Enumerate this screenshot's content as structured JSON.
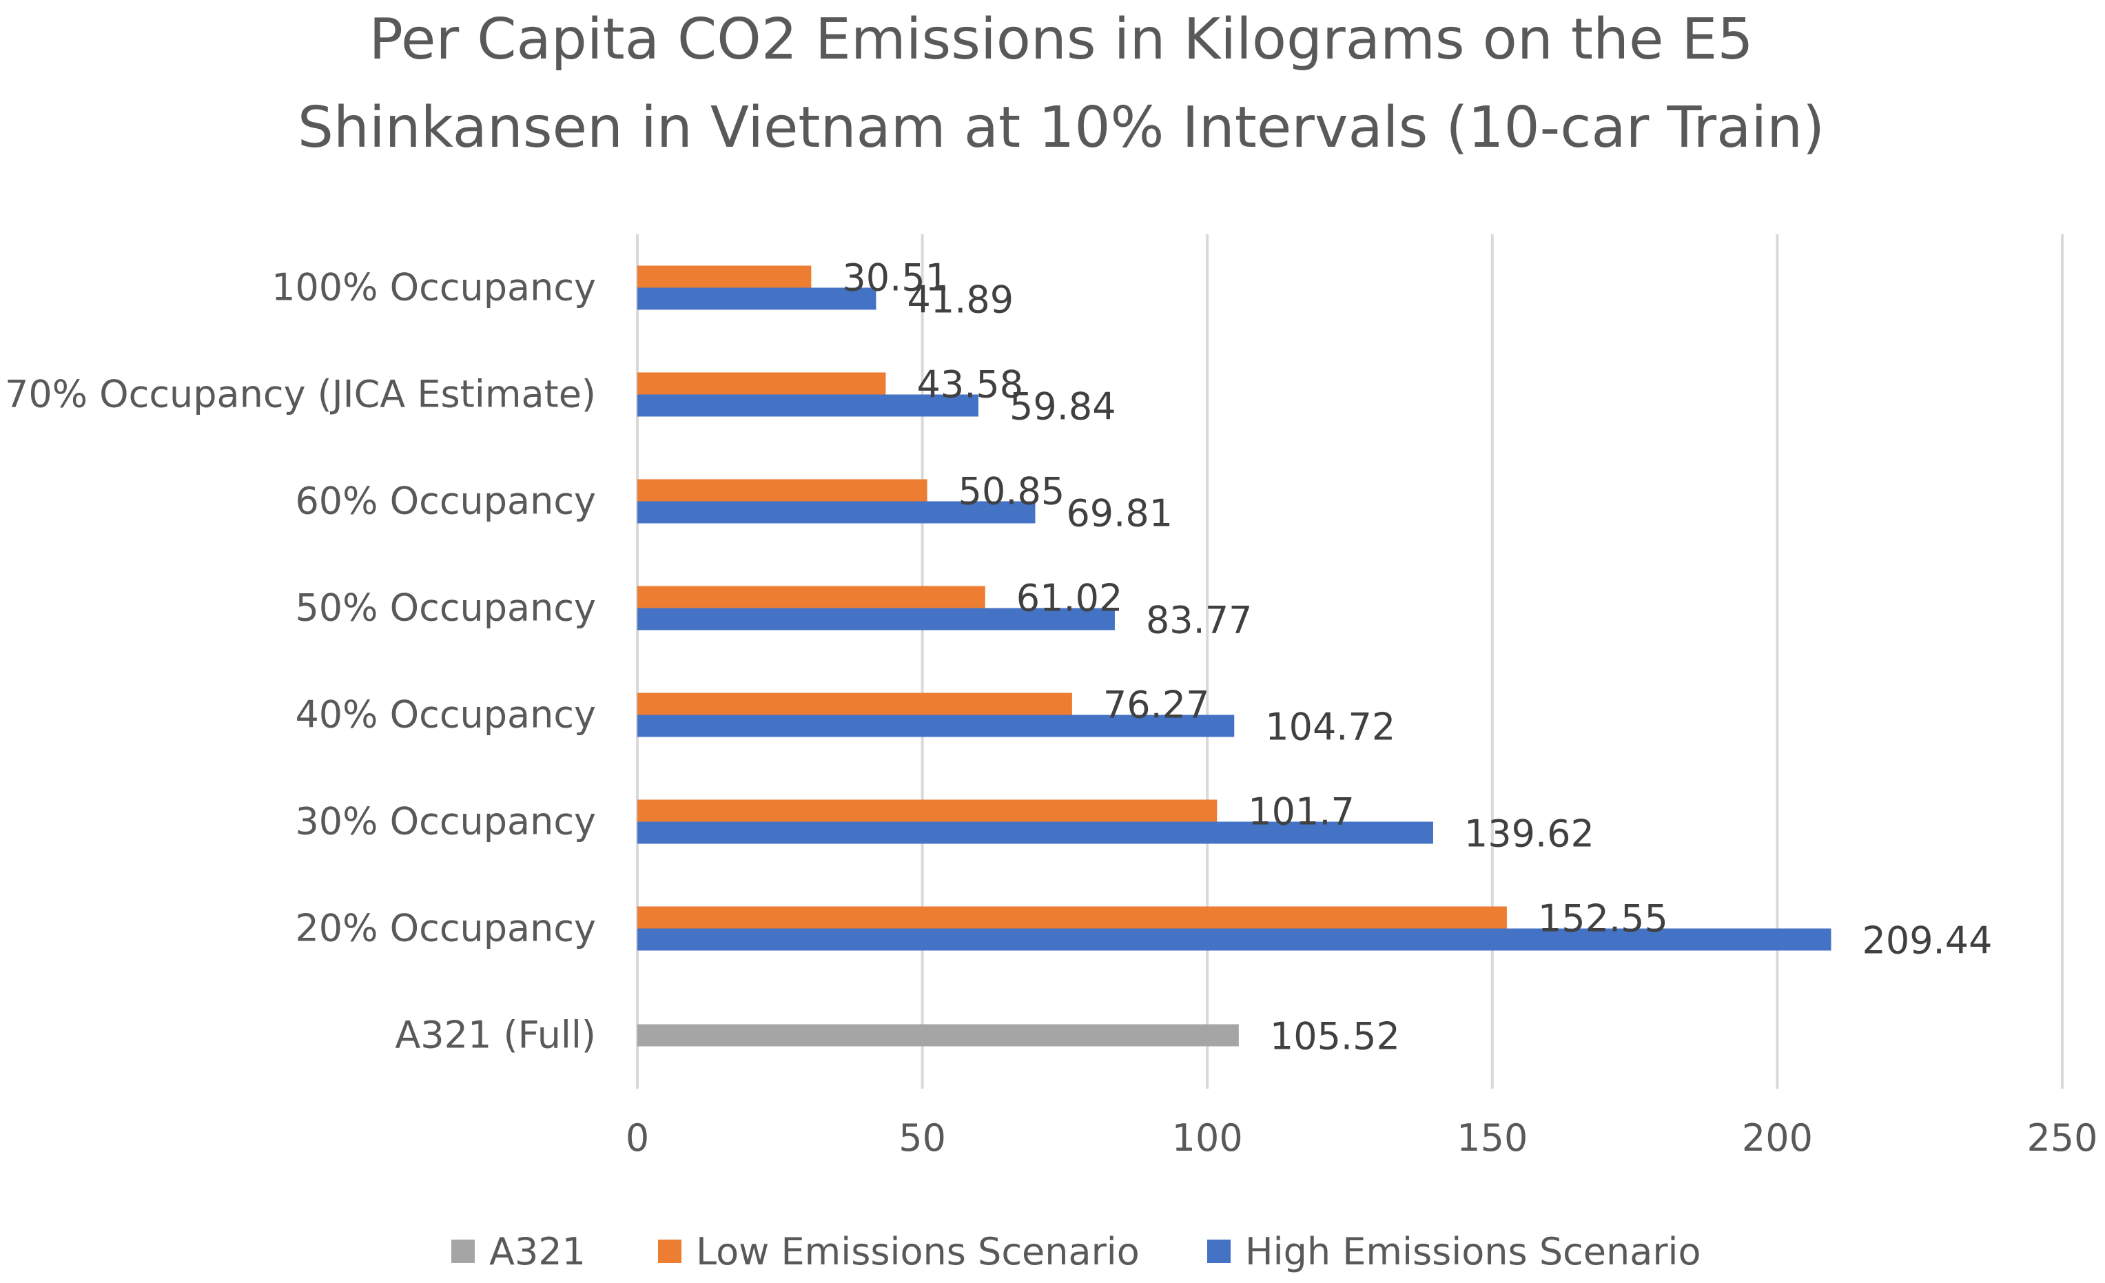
{
  "chart_data": {
    "type": "bar",
    "orientation": "horizontal",
    "title_lines": [
      "Per Capita CO2 Emissions in Kilograms on the E5",
      "Shinkansen in Vietnam at 10% Intervals (10-car Train)"
    ],
    "categories": [
      "100% Occupancy",
      "70% Occupancy (JICA Estimate)",
      "60% Occupancy",
      "50% Occupancy",
      "40% Occupancy",
      "30% Occupancy",
      "20% Occupancy",
      "A321 (Full)"
    ],
    "series": [
      {
        "name": "High Emissions Scenario",
        "color": "#4472C4",
        "values": [
          41.89,
          59.84,
          69.81,
          83.77,
          104.72,
          139.62,
          209.44,
          null
        ],
        "labels": [
          "41.89",
          "59.84",
          "69.81",
          "83.77",
          "104.72",
          "139.62",
          "209.44",
          null
        ]
      },
      {
        "name": "Low Emissions Scenario",
        "color": "#ED7D31",
        "values": [
          30.51,
          43.58,
          50.85,
          61.02,
          76.27,
          101.7,
          152.55,
          null
        ],
        "labels": [
          "30.51",
          "43.58",
          "50.85",
          "61.02",
          "76.27",
          "101.7",
          "152.55",
          null
        ]
      },
      {
        "name": "A321",
        "color": "#A5A5A5",
        "values": [
          null,
          null,
          null,
          null,
          null,
          null,
          null,
          105.52
        ],
        "labels": [
          null,
          null,
          null,
          null,
          null,
          null,
          null,
          "105.52"
        ]
      }
    ],
    "xlim": [
      0,
      250
    ],
    "xticks": [
      0,
      50,
      100,
      150,
      200,
      250
    ],
    "xtick_labels": [
      "0",
      "50",
      "100",
      "150",
      "200",
      "250"
    ],
    "grid": true,
    "legend": {
      "placement": "bottom",
      "order": [
        "A321",
        "Low Emissions Scenario",
        "High Emissions Scenario"
      ]
    },
    "xlabel": "",
    "ylabel": ""
  }
}
